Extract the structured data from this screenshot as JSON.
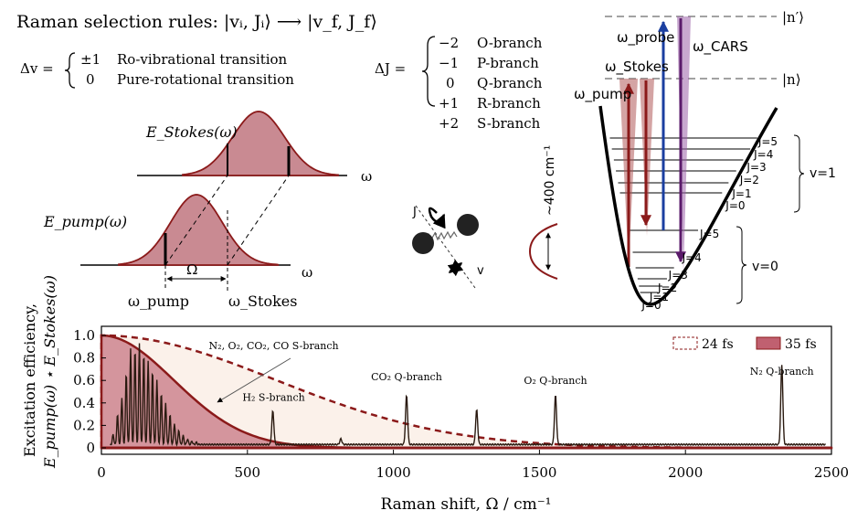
{
  "rules": {
    "title": "Raman selection rules: |vᵢ, Jᵢ⟩ ⟶ |v_f, J_f⟩",
    "dv_label": "Δv =",
    "dv_items": [
      {
        "value": "±1",
        "label": "Ro-vibrational transition"
      },
      {
        "value": "0",
        "label": "Pure-rotational transition"
      }
    ],
    "dj_label": "ΔJ =",
    "dj_items": [
      {
        "value": "−2",
        "label": "O-branch"
      },
      {
        "value": "−1",
        "label": "P-branch"
      },
      {
        "value": "0",
        "label": "Q-branch"
      },
      {
        "value": "+1",
        "label": "R-branch"
      },
      {
        "value": "+2",
        "label": "S-branch"
      }
    ]
  },
  "spectra_sketch": {
    "stokes_label": "E_Stokes(ω)",
    "pump_label": "E_pump(ω)",
    "omega_axis": "ω",
    "omega_shift": "Ω",
    "omega_pump": "ω_pump",
    "omega_stokes": "ω_Stokes"
  },
  "molecule": {
    "j_label": "J",
    "v_label": "v",
    "wavenumber_label": "~400 cm⁻¹"
  },
  "energy_diagram": {
    "state_n_prime": "|n′⟩",
    "state_n": "|n⟩",
    "omega_pump": "ω_pump",
    "omega_stokes": "ω_Stokes",
    "omega_probe": "ω_probe",
    "omega_cars": "ω_CARS",
    "v1_levels": [
      "J=5",
      "J=4",
      "J=3",
      "J=2",
      "J=1",
      "J=0"
    ],
    "v0_levels": [
      "J=5",
      "J=4",
      "J=3",
      "J=2",
      "J=1",
      "J=0"
    ],
    "v1_label": "v=1",
    "v0_label": "v=0"
  },
  "colors": {
    "pump": "#8b1a1a",
    "fill35": "#c06070",
    "probe": "#1b3fa0",
    "cars": "#5a1a6a",
    "spectrum": "#2a1a10"
  },
  "chart_data": {
    "type": "line",
    "xlabel": "Raman shift, Ω / cm⁻¹",
    "ylabel_line1": "Excitation efficiency,",
    "ylabel_line2": "E_pump(ω) ⋆ E_Stokes(ω)",
    "xlim": [
      0,
      2500
    ],
    "ylim": [
      0,
      1.0
    ],
    "xticks": [
      "0",
      "500",
      "1000",
      "1500",
      "2000",
      "2500"
    ],
    "yticks": [
      "0",
      "0.2",
      "0.4",
      "0.6",
      "0.8",
      "1.0"
    ],
    "legend": [
      "24 fs",
      "35 fs"
    ],
    "legend_position": "top-right",
    "envelopes": [
      {
        "name": "24 fs",
        "half_max_shift": 700,
        "style": "dashed"
      },
      {
        "name": "35 fs",
        "half_max_shift": 290,
        "style": "filled"
      }
    ],
    "spectrum_baseline": 0.03,
    "peaks": [
      {
        "x": 40,
        "y": 0.12
      },
      {
        "x": 55,
        "y": 0.3
      },
      {
        "x": 70,
        "y": 0.45
      },
      {
        "x": 85,
        "y": 0.68
      },
      {
        "x": 100,
        "y": 0.88
      },
      {
        "x": 115,
        "y": 0.9
      },
      {
        "x": 130,
        "y": 0.93
      },
      {
        "x": 145,
        "y": 0.85
      },
      {
        "x": 160,
        "y": 0.78
      },
      {
        "x": 175,
        "y": 0.7
      },
      {
        "x": 190,
        "y": 0.6
      },
      {
        "x": 205,
        "y": 0.5
      },
      {
        "x": 220,
        "y": 0.4
      },
      {
        "x": 235,
        "y": 0.3
      },
      {
        "x": 250,
        "y": 0.22
      },
      {
        "x": 265,
        "y": 0.16
      },
      {
        "x": 280,
        "y": 0.11
      },
      {
        "x": 295,
        "y": 0.08
      },
      {
        "x": 310,
        "y": 0.06
      },
      {
        "x": 325,
        "y": 0.05
      },
      {
        "x": 587,
        "y": 0.33
      },
      {
        "x": 820,
        "y": 0.08
      },
      {
        "x": 1045,
        "y": 0.47
      },
      {
        "x": 1285,
        "y": 0.34
      },
      {
        "x": 1555,
        "y": 0.47
      },
      {
        "x": 2330,
        "y": 0.74
      }
    ],
    "annotations": [
      {
        "text": "N₂, O₂, CO₂, CO S-branch",
        "x": 590,
        "y": 0.88
      },
      {
        "text": "H₂ S-branch",
        "x": 590,
        "y": 0.42
      },
      {
        "text": "CO₂ Q-branch",
        "x": 1045,
        "y": 0.6
      },
      {
        "text": "O₂ Q-branch",
        "x": 1555,
        "y": 0.57
      },
      {
        "text": "N₂ Q-branch",
        "x": 2330,
        "y": 0.65
      }
    ]
  }
}
